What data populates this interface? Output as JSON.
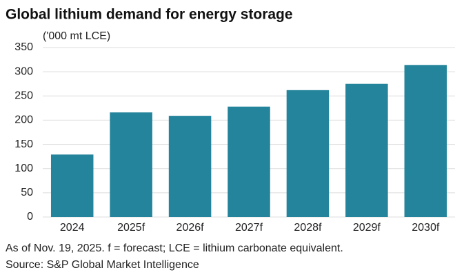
{
  "chart_data": {
    "type": "bar",
    "title": "Global lithium demand for energy storage",
    "subtitle": "('000 mt LCE)",
    "categories": [
      "2024",
      "2025f",
      "2026f",
      "2027f",
      "2028f",
      "2029f",
      "2030f"
    ],
    "values": [
      129,
      216,
      209,
      228,
      262,
      275,
      314
    ],
    "color": "#23849b",
    "ylim": [
      0,
      350
    ],
    "yticks": [
      0,
      50,
      100,
      150,
      200,
      250,
      300,
      350
    ],
    "grid": true,
    "notes": [
      "As of Nov. 19, 2025. f = forecast; LCE = lithium carbonate equivalent.",
      "Source: S&P Global Market Intelligence"
    ]
  }
}
